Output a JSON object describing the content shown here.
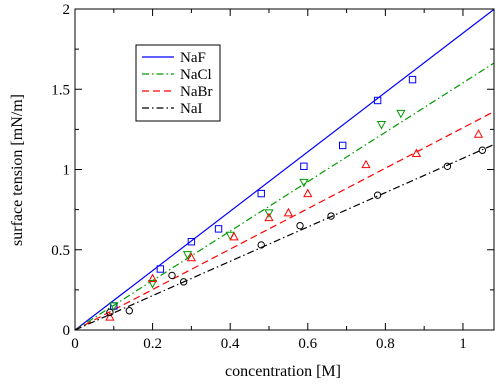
{
  "chart_data": {
    "type": "scatter",
    "title": "",
    "xlabel": "concentration [M]",
    "ylabel": "surface tension [mN/m]",
    "xlim": [
      0,
      1.08
    ],
    "ylim": [
      0,
      2
    ],
    "x_ticks": [
      0,
      0.2,
      0.4,
      0.6,
      0.8,
      1
    ],
    "y_ticks": [
      0,
      0.5,
      1,
      1.5,
      2
    ],
    "x_tick_labels": [
      "0",
      "0.2",
      "0.4",
      "0.6",
      "0.8",
      "1"
    ],
    "y_tick_labels": [
      "0",
      "0.5",
      "1",
      "1.5",
      "2"
    ],
    "grid": false,
    "legend_position": "top-left",
    "series": [
      {
        "name": "NaF",
        "color": "#0000ff",
        "line_style": "solid",
        "marker": "square",
        "fit_slope": 1.85,
        "x": [
          0.1,
          0.22,
          0.3,
          0.37,
          0.48,
          0.59,
          0.69,
          0.78,
          0.87
        ],
        "y": [
          0.15,
          0.38,
          0.55,
          0.63,
          0.85,
          1.02,
          1.15,
          1.43,
          1.56
        ]
      },
      {
        "name": "NaCl",
        "color": "#009900",
        "line_style": "dash-dot",
        "marker": "triangle-down",
        "fit_slope": 1.54,
        "x": [
          0.1,
          0.2,
          0.29,
          0.4,
          0.5,
          0.59,
          0.79,
          0.84
        ],
        "y": [
          0.15,
          0.29,
          0.47,
          0.59,
          0.73,
          0.92,
          1.28,
          1.35
        ]
      },
      {
        "name": "NaBr",
        "color": "#ff0000",
        "line_style": "dashed",
        "marker": "triangle-up",
        "fit_slope": 1.26,
        "x": [
          0.09,
          0.2,
          0.3,
          0.41,
          0.5,
          0.55,
          0.6,
          0.75,
          0.88,
          1.04
        ],
        "y": [
          0.08,
          0.32,
          0.45,
          0.58,
          0.7,
          0.73,
          0.85,
          1.03,
          1.1,
          1.22
        ]
      },
      {
        "name": "NaI",
        "color": "#000000",
        "line_style": "dash-dot",
        "marker": "circle",
        "fit_slope": 1.07,
        "x": [
          0.09,
          0.14,
          0.25,
          0.28,
          0.48,
          0.58,
          0.66,
          0.78,
          0.96,
          1.05
        ],
        "y": [
          0.11,
          0.12,
          0.34,
          0.3,
          0.53,
          0.65,
          0.71,
          0.84,
          1.02,
          1.12
        ]
      }
    ]
  }
}
